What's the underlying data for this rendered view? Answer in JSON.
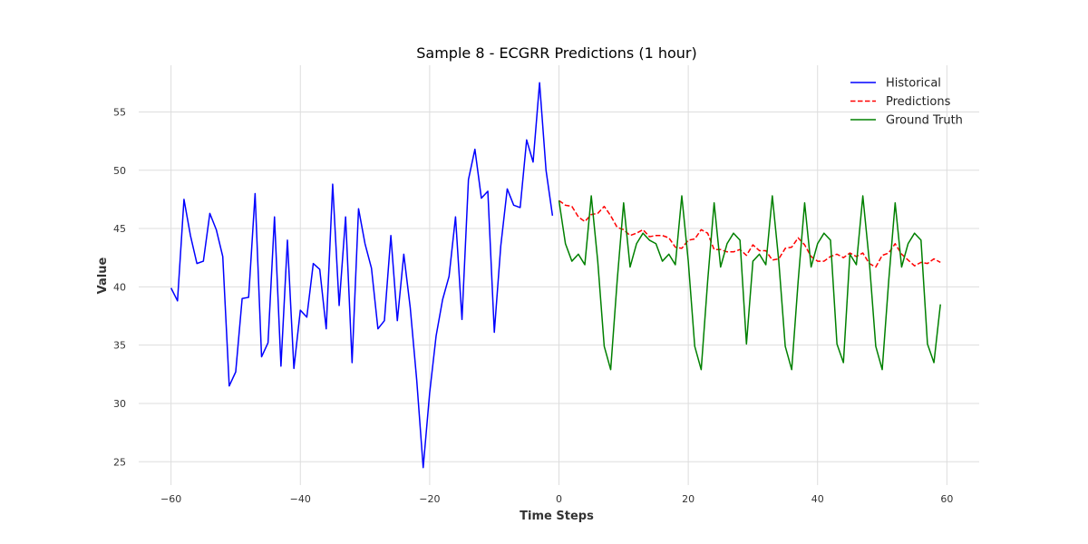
{
  "chart_data": {
    "type": "line",
    "title": "Sample 8 - ECGRR Predictions (1 hour)",
    "xlabel": "Time Steps",
    "ylabel": "Value",
    "xlim": [
      -65,
      65
    ],
    "ylim": [
      23,
      59
    ],
    "xticks": [
      -60,
      -40,
      -20,
      0,
      20,
      40,
      60
    ],
    "yticks": [
      25,
      30,
      35,
      40,
      45,
      50,
      55
    ],
    "xtick_labels": [
      "−60",
      "−40",
      "−20",
      "0",
      "20",
      "40",
      "60"
    ],
    "ytick_labels": [
      "25",
      "30",
      "35",
      "40",
      "45",
      "50",
      "55"
    ],
    "grid": true,
    "legend_position": "top-right",
    "series": [
      {
        "name": "Historical",
        "color": "#0000ff",
        "style": "solid",
        "x_start": -60,
        "values": [
          39.9,
          38.8,
          47.5,
          44.4,
          42.0,
          42.2,
          46.3,
          44.9,
          42.6,
          31.5,
          32.7,
          39.0,
          39.1,
          48.0,
          34.0,
          35.2,
          46.0,
          33.2,
          44.0,
          33.0,
          38.0,
          37.4,
          42.0,
          41.5,
          36.4,
          48.8,
          38.4,
          46.0,
          33.5,
          46.7,
          43.7,
          41.6,
          36.4,
          37.1,
          44.4,
          37.1,
          42.8,
          38.2,
          32.0,
          24.5,
          30.9,
          35.8,
          38.9,
          40.9,
          46.0,
          37.2,
          49.2,
          51.8,
          47.6,
          48.2,
          36.1,
          43.5,
          48.4,
          47.0,
          46.8,
          52.6,
          50.7,
          57.5,
          50.0,
          46.1
        ]
      },
      {
        "name": "Predictions",
        "color": "#ff0000",
        "style": "dashed",
        "x_start": 0,
        "values": [
          47.4,
          47.0,
          46.9,
          46.0,
          45.6,
          46.2,
          46.3,
          46.9,
          46.1,
          45.1,
          44.9,
          44.4,
          44.6,
          44.9,
          44.3,
          44.4,
          44.4,
          44.2,
          43.4,
          43.3,
          44.0,
          44.1,
          44.9,
          44.6,
          43.2,
          43.2,
          43.0,
          43.0,
          43.2,
          42.7,
          43.6,
          43.1,
          43.1,
          42.3,
          42.4,
          43.3,
          43.4,
          44.2,
          43.6,
          42.6,
          42.2,
          42.2,
          42.6,
          42.8,
          42.5,
          42.9,
          42.6,
          42.9,
          42.0,
          41.7,
          42.7,
          42.9,
          43.7,
          42.8,
          42.3,
          41.8,
          42.1,
          42.0,
          42.4,
          42.1
        ]
      },
      {
        "name": "Ground Truth",
        "color": "#008000",
        "style": "solid",
        "x_start": 0,
        "values": [
          47.4,
          43.7,
          42.2,
          42.8,
          41.9,
          47.8,
          42.2,
          34.9,
          32.9,
          40.5,
          47.2,
          41.7,
          43.7,
          44.6,
          44.0,
          43.7,
          42.2,
          42.8,
          41.9,
          47.8,
          42.2,
          34.9,
          32.9,
          40.5,
          47.2,
          41.7,
          43.7,
          44.6,
          44.0,
          35.1,
          42.2,
          42.8,
          41.9,
          47.8,
          42.2,
          34.9,
          32.9,
          40.5,
          47.2,
          41.7,
          43.7,
          44.6,
          44.0,
          35.1,
          33.5,
          42.8,
          41.9,
          47.8,
          42.2,
          34.9,
          32.9,
          40.5,
          47.2,
          41.7,
          43.7,
          44.6,
          44.0,
          35.1,
          33.5,
          38.5
        ]
      }
    ]
  }
}
